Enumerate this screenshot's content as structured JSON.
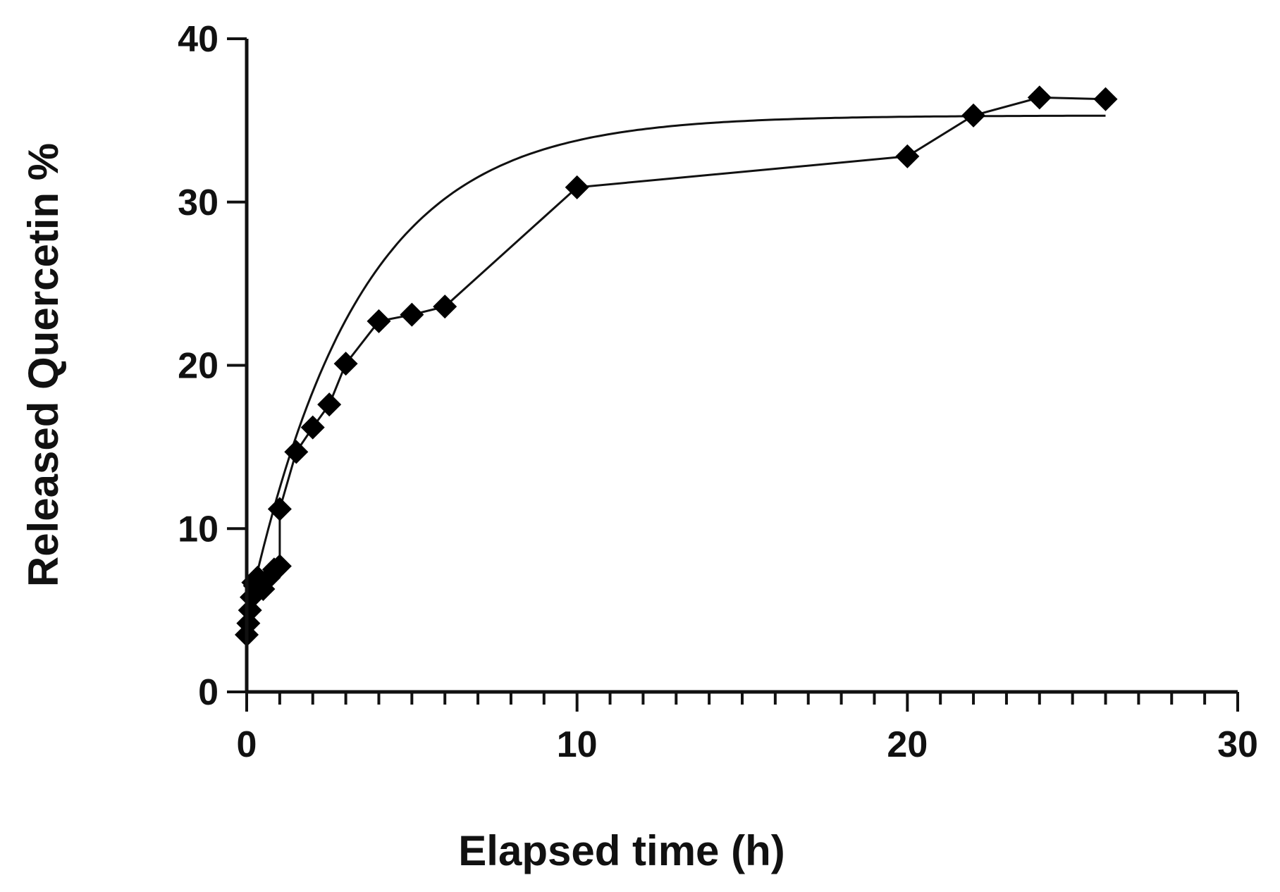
{
  "chart_data": {
    "type": "scatter",
    "xlabel": "Elapsed time (h)",
    "ylabel": "Released Quercetin %",
    "xlim": [
      0,
      30
    ],
    "ylim": [
      0,
      40
    ],
    "x_major_ticks": [
      0,
      10,
      20,
      30
    ],
    "x_minor_step": 1,
    "y_major_ticks": [
      0,
      10,
      20,
      30,
      40
    ],
    "grid": false,
    "legend": "none",
    "series": [
      {
        "marker": "diamond",
        "connected": true,
        "color": "#000000",
        "points": [
          {
            "x": 0,
            "y": 3.5
          },
          {
            "x": 0.05,
            "y": 4.2
          },
          {
            "x": 0.1,
            "y": 5.0
          },
          {
            "x": 0.15,
            "y": 5.8
          },
          {
            "x": 0.2,
            "y": 6.7
          },
          {
            "x": 0.25,
            "y": 6.5
          },
          {
            "x": 0.33,
            "y": 7.0
          },
          {
            "x": 0.5,
            "y": 6.3
          },
          {
            "x": 0.67,
            "y": 7.0
          },
          {
            "x": 0.83,
            "y": 7.5
          },
          {
            "x": 1,
            "y": 7.7
          },
          {
            "x": 1,
            "y": 11.2
          },
          {
            "x": 1.5,
            "y": 14.7
          },
          {
            "x": 2,
            "y": 16.2
          },
          {
            "x": 2.5,
            "y": 17.6
          },
          {
            "x": 3,
            "y": 20.1
          },
          {
            "x": 4,
            "y": 22.7
          },
          {
            "x": 5,
            "y": 23.1
          },
          {
            "x": 6,
            "y": 23.6
          },
          {
            "x": 10,
            "y": 30.9
          },
          {
            "x": 20,
            "y": 32.8
          },
          {
            "x": 22,
            "y": 35.3
          },
          {
            "x": 24,
            "y": 36.4
          },
          {
            "x": 26,
            "y": 36.3
          }
        ]
      }
    ],
    "fit_curve": {
      "model": "one-phase association",
      "y0": 4.5,
      "plateau": 35.3,
      "k": 0.3,
      "x_range": [
        0,
        26
      ]
    }
  }
}
